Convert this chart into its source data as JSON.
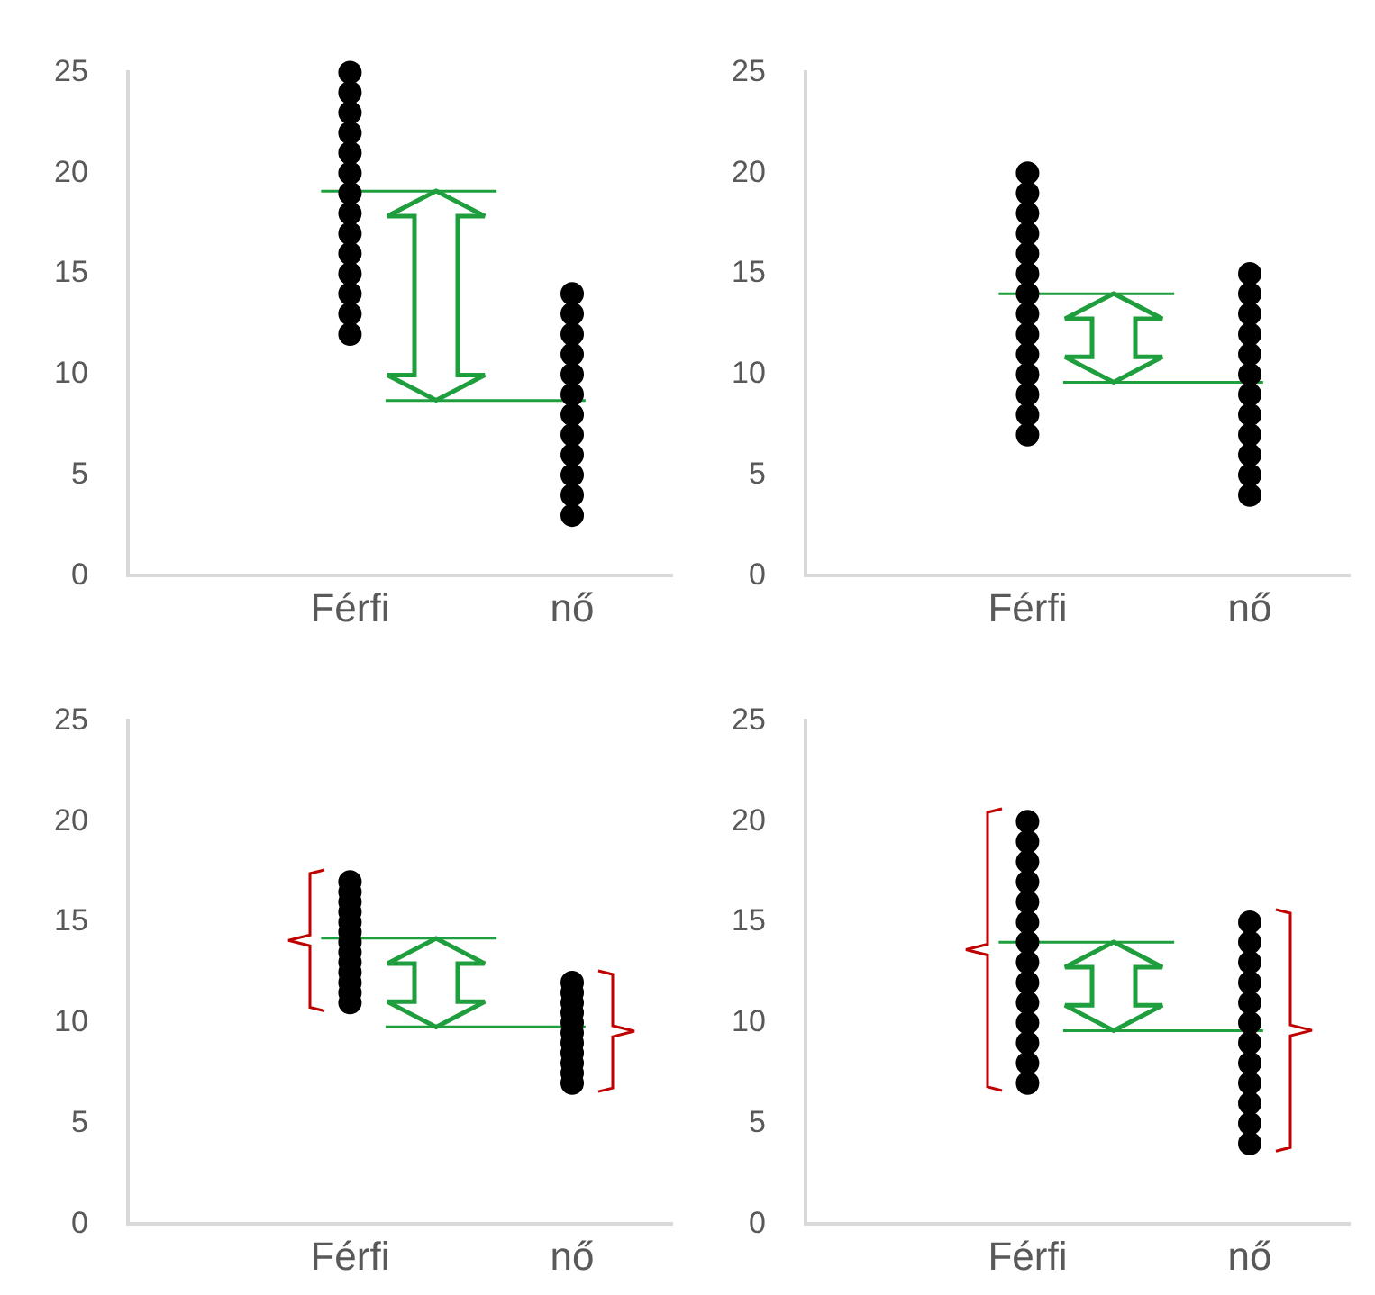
{
  "chart_data": [
    {
      "type": "scatter",
      "categories": [
        "Férfi",
        "nő"
      ],
      "ylim": [
        0,
        25
      ],
      "yticks": [
        0,
        5,
        10,
        15,
        20,
        25
      ],
      "grid": false,
      "legend": false,
      "marker": "circle",
      "series": [
        {
          "color": "#000000",
          "x": [
            "Férfi",
            "Férfi",
            "Férfi",
            "Férfi",
            "Férfi",
            "Férfi",
            "Férfi",
            "Férfi",
            "Férfi",
            "Férfi",
            "Férfi",
            "Férfi",
            "Férfi",
            "Férfi"
          ],
          "values": [
            12,
            13,
            14,
            15,
            16,
            17,
            18,
            19,
            20,
            21,
            22,
            23,
            24,
            25
          ]
        },
        {
          "color": "#000000",
          "x": [
            "nő",
            "nő",
            "nő",
            "nő",
            "nő",
            "nő",
            "nő",
            "nő",
            "nő",
            "nő",
            "nő",
            "nő"
          ],
          "values": [
            3,
            4,
            5,
            6,
            7,
            8,
            9,
            10,
            11,
            12,
            13,
            14
          ]
        }
      ],
      "ref_lines": [
        {
          "axis": "y",
          "value": 19.1,
          "color": "#1e9e3c"
        },
        {
          "axis": "y",
          "value": 8.7,
          "color": "#1e9e3c"
        }
      ]
    },
    {
      "type": "scatter",
      "categories": [
        "Férfi",
        "nő"
      ],
      "ylim": [
        0,
        25
      ],
      "yticks": [
        0,
        5,
        10,
        15,
        20,
        25
      ],
      "grid": false,
      "legend": false,
      "marker": "circle",
      "series": [
        {
          "color": "#000000",
          "x": [
            "Férfi",
            "Férfi",
            "Férfi",
            "Férfi",
            "Férfi",
            "Férfi",
            "Férfi",
            "Férfi",
            "Férfi",
            "Férfi",
            "Férfi",
            "Férfi",
            "Férfi",
            "Férfi"
          ],
          "values": [
            7,
            8,
            9,
            10,
            11,
            12,
            13,
            14,
            15,
            16,
            17,
            18,
            19,
            20
          ]
        },
        {
          "color": "#000000",
          "x": [
            "nő",
            "nő",
            "nő",
            "nő",
            "nő",
            "nő",
            "nő",
            "nő",
            "nő",
            "nő",
            "nő",
            "nő"
          ],
          "values": [
            4,
            5,
            6,
            7,
            8,
            9,
            10,
            11,
            12,
            13,
            14,
            15
          ]
        }
      ],
      "ref_lines": [
        {
          "axis": "y",
          "value": 14,
          "color": "#1e9e3c"
        },
        {
          "axis": "y",
          "value": 9.6,
          "color": "#1e9e3c"
        }
      ]
    },
    {
      "type": "scatter",
      "categories": [
        "Férfi",
        "nő"
      ],
      "ylim": [
        0,
        25
      ],
      "yticks": [
        0,
        5,
        10,
        15,
        20,
        25
      ],
      "grid": false,
      "legend": false,
      "marker": "circle",
      "series": [
        {
          "color": "#000000",
          "x": [
            "Férfi",
            "Férfi",
            "Férfi",
            "Férfi",
            "Férfi",
            "Férfi",
            "Férfi",
            "Férfi",
            "Férfi",
            "Férfi",
            "Férfi",
            "Férfi",
            "Férfi"
          ],
          "values": [
            11,
            11.5,
            12,
            12.5,
            13,
            13.5,
            14,
            14.5,
            15,
            15.5,
            16,
            16.5,
            17
          ]
        },
        {
          "color": "#000000",
          "x": [
            "nő",
            "nő",
            "nő",
            "nő",
            "nő",
            "nő",
            "nő",
            "nő",
            "nő",
            "nő",
            "nő"
          ],
          "values": [
            7,
            7.5,
            8,
            8.5,
            9,
            9.5,
            10,
            10.5,
            11,
            11.5,
            12
          ]
        }
      ],
      "ref_lines": [
        {
          "axis": "y",
          "value": 14.2,
          "color": "#1e9e3c"
        },
        {
          "axis": "y",
          "value": 9.8,
          "color": "#1e9e3c"
        }
      ]
    },
    {
      "type": "scatter",
      "categories": [
        "Férfi",
        "nő"
      ],
      "ylim": [
        0,
        25
      ],
      "yticks": [
        0,
        5,
        10,
        15,
        20,
        25
      ],
      "grid": false,
      "legend": false,
      "marker": "circle",
      "series": [
        {
          "color": "#000000",
          "x": [
            "Férfi",
            "Férfi",
            "Férfi",
            "Férfi",
            "Férfi",
            "Férfi",
            "Férfi",
            "Férfi",
            "Férfi",
            "Férfi",
            "Férfi",
            "Férfi",
            "Férfi",
            "Férfi"
          ],
          "values": [
            7,
            8,
            9,
            10,
            11,
            12,
            13,
            14,
            15,
            16,
            17,
            18,
            19,
            20
          ]
        },
        {
          "color": "#000000",
          "x": [
            "nő",
            "nő",
            "nő",
            "nő",
            "nő",
            "nő",
            "nő",
            "nő",
            "nő",
            "nő",
            "nő",
            "nő"
          ],
          "values": [
            4,
            5,
            6,
            7,
            8,
            9,
            10,
            11,
            12,
            13,
            14,
            15
          ]
        }
      ],
      "ref_lines": [
        {
          "axis": "y",
          "value": 14,
          "color": "#1e9e3c"
        },
        {
          "axis": "y",
          "value": 9.6,
          "color": "#1e9e3c"
        }
      ]
    }
  ]
}
